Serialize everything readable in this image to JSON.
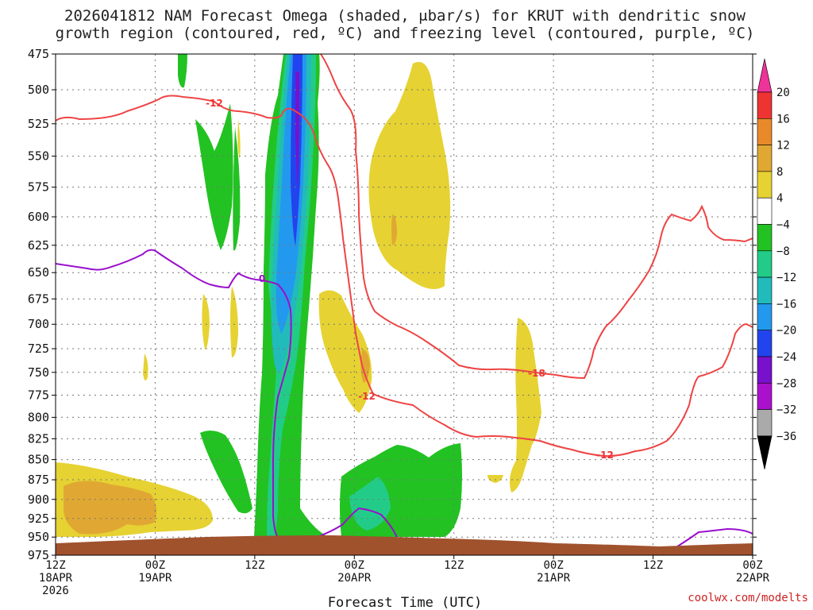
{
  "title_line1": "2026041812 NAM Forecast Omega (shaded, μbar/s) for KRUT with dendritic snow",
  "title_line2": "growth region (contoured, red, ºC) and freezing level (contoured, purple, ºC)",
  "credit": "coolwx.com/modelts",
  "chart_data": {
    "type": "heatmap",
    "title": "2026041812 NAM Forecast Omega (shaded, μbar/s) for KRUT with dendritic snow growth region (contoured, red, ºC) and freezing level (contoured, purple, ºC)",
    "xlabel": "Forecast Time (UTC)",
    "ylabel": "",
    "x_ticks": [
      {
        "label": "12Z",
        "date": "18APR",
        "year": "2026"
      },
      {
        "label": "00Z",
        "date": "19APR",
        "year": ""
      },
      {
        "label": "12Z",
        "date": "",
        "year": ""
      },
      {
        "label": "00Z",
        "date": "20APR",
        "year": ""
      },
      {
        "label": "12Z",
        "date": "",
        "year": ""
      },
      {
        "label": "00Z",
        "date": "21APR",
        "year": ""
      },
      {
        "label": "12Z",
        "date": "",
        "year": ""
      },
      {
        "label": "00Z",
        "date": "22APR",
        "year": ""
      }
    ],
    "x_range_hours": [
      0,
      84
    ],
    "y_ticks": [
      "475",
      "500",
      "525",
      "550",
      "575",
      "600",
      "625",
      "650",
      "675",
      "700",
      "725",
      "750",
      "775",
      "800",
      "825",
      "850",
      "875",
      "900",
      "925",
      "950",
      "975"
    ],
    "y_range_hPa": [
      475,
      975
    ],
    "y_scale": "log pressure",
    "grid": true,
    "colorbar": {
      "labels": [
        "20",
        "16",
        "12",
        "8",
        "4",
        "−4",
        "−8",
        "−12",
        "−16",
        "−20",
        "−24",
        "−28",
        "−32",
        "−36"
      ],
      "colors": [
        "#ee3333",
        "#e88a2a",
        "#e0a832",
        "#e6d232",
        "#ffffff",
        "#22c222",
        "#22cc88",
        "#22bbbb",
        "#2299ee",
        "#2244ee",
        "#7711cc",
        "#aa11cc",
        "#aaaaaa"
      ],
      "top_arrow_color": "#ee3399",
      "bottom_arrow_color": "#000000"
    },
    "contour_labels": {
      "red": [
        "-12",
        "-12",
        "-18",
        "-12"
      ],
      "purple": [
        "0"
      ]
    },
    "colors": {
      "red_contour": "#ee4444",
      "purple_contour": "#9911cc",
      "terrain": "#a0522d",
      "grid": "#777777"
    }
  }
}
